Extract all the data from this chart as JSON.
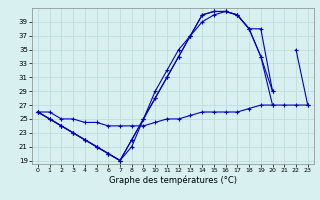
{
  "xlabel": "Graphe des températures (°C)",
  "bg_color": "#d8f0f0",
  "line_color": "#0000cc",
  "grid_color": "#b8dada",
  "ylim": [
    18.5,
    41
  ],
  "xlim": [
    -0.5,
    23.5
  ],
  "yticks": [
    19,
    21,
    23,
    25,
    27,
    29,
    31,
    33,
    35,
    37,
    39
  ],
  "xticks": [
    0,
    1,
    2,
    3,
    4,
    5,
    6,
    7,
    8,
    9,
    10,
    11,
    12,
    13,
    14,
    15,
    16,
    17,
    18,
    19,
    20,
    21,
    22,
    23
  ],
  "line1_x": [
    0,
    1,
    2,
    3,
    4,
    5,
    6,
    7,
    8,
    9,
    10,
    11,
    12,
    13,
    14,
    15,
    16,
    17,
    18,
    19,
    20
  ],
  "line1_y": [
    26,
    25,
    24,
    23,
    22,
    21,
    20,
    19,
    22,
    25,
    28,
    31,
    34,
    37,
    39,
    40,
    40.5,
    40,
    38,
    34,
    29
  ],
  "line2_x": [
    0,
    1,
    2,
    3,
    4,
    5,
    6,
    7,
    8,
    9,
    10,
    11,
    12,
    13,
    14,
    15,
    16,
    17,
    18,
    19,
    20
  ],
  "line2_y": [
    26,
    25,
    24,
    23,
    22,
    21,
    20,
    19,
    21,
    25,
    28,
    31,
    34,
    37,
    40,
    40.5,
    40.5,
    40,
    38,
    38,
    29
  ],
  "line3_x": [
    0,
    1,
    2,
    3,
    4,
    5,
    6,
    7,
    8,
    9,
    10,
    11,
    12,
    13,
    14,
    15,
    16,
    17,
    18,
    19,
    20,
    21,
    22,
    23
  ],
  "line3_y": [
    26,
    25,
    24,
    23,
    22,
    21,
    20,
    19,
    22,
    25,
    29,
    32,
    35,
    37,
    40,
    40.5,
    40.5,
    40,
    38,
    34,
    27,
    null,
    35,
    27
  ],
  "line4_x": [
    0,
    1,
    2,
    3,
    4,
    5,
    6,
    7,
    8,
    9,
    10,
    11,
    12,
    13,
    14,
    15,
    16,
    17,
    18,
    19,
    20,
    21,
    22,
    23
  ],
  "line4_y": [
    26,
    26,
    25,
    25,
    24.5,
    24.5,
    24,
    24,
    24,
    24,
    24.5,
    25,
    25,
    25.5,
    26,
    26,
    26,
    26,
    26.5,
    27,
    27,
    27,
    27,
    27
  ]
}
